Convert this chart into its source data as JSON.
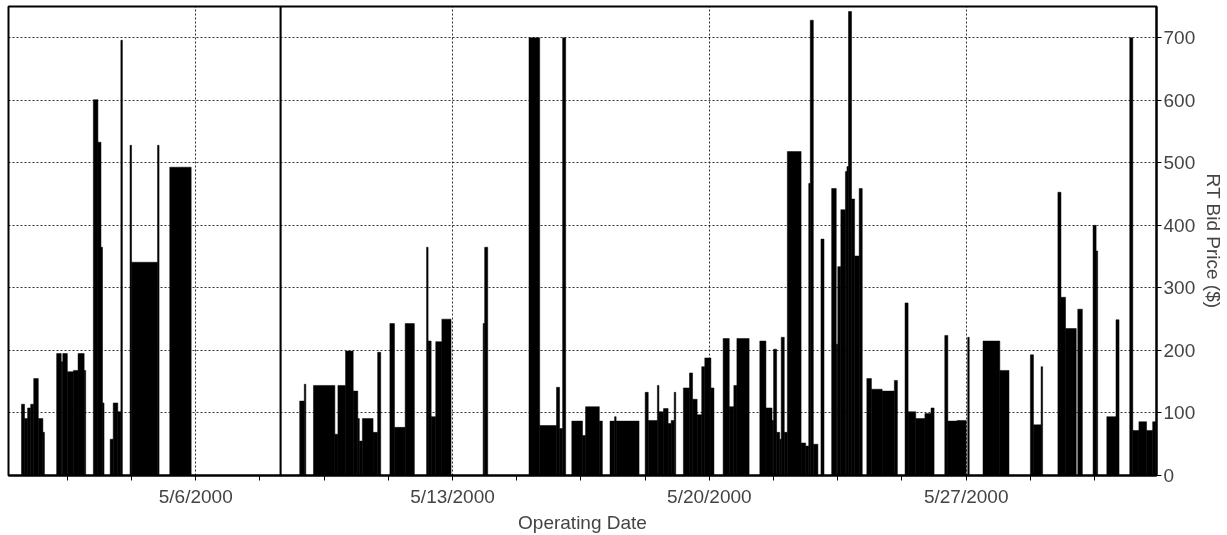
{
  "chart_data": {
    "type": "histogram",
    "xlabel": "Operating Date",
    "ylabel": "RT Bid Price ($)",
    "color": "#000000",
    "grid": true,
    "xlim": [
      "2000-04-30T21:30",
      "2000-06-01T04:30"
    ],
    "ylim": [
      0,
      750
    ],
    "xticks": [
      {
        "value": "2000-05-02T12:00",
        "label": null
      },
      {
        "value": "2000-05-04T06:00",
        "label": null
      },
      {
        "value": "2000-05-06T00:00",
        "label": "5/6/2000"
      },
      {
        "value": "2000-05-07T18:00",
        "label": null
      },
      {
        "value": "2000-05-09T12:00",
        "label": null
      },
      {
        "value": "2000-05-11T06:00",
        "label": null
      },
      {
        "value": "2000-05-13T00:00",
        "label": "5/13/2000"
      },
      {
        "value": "2000-05-14T18:00",
        "label": null
      },
      {
        "value": "2000-05-16T12:00",
        "label": null
      },
      {
        "value": "2000-05-18T06:00",
        "label": null
      },
      {
        "value": "2000-05-20T00:00",
        "label": "5/20/2000"
      },
      {
        "value": "2000-05-21T18:00",
        "label": null
      },
      {
        "value": "2000-05-23T12:00",
        "label": null
      },
      {
        "value": "2000-05-25T06:00",
        "label": null
      },
      {
        "value": "2000-05-27T00:00",
        "label": "5/27/2000"
      },
      {
        "value": "2000-05-28T18:00",
        "label": null
      },
      {
        "value": "2000-05-30T12:00",
        "label": null
      }
    ],
    "yticks": [
      0,
      100,
      200,
      300,
      400,
      500,
      600,
      700
    ],
    "bins": [
      "2000-05-01T06:00",
      "2000-05-01T08:00",
      "2000-05-01T10:00",
      "2000-05-01T12:00",
      "2000-05-01T14:00",
      "2000-05-01T17:00",
      "2000-05-01T20:00",
      "2000-05-01T21:00",
      "2000-05-02T05:00",
      "2000-05-02T08:00",
      "2000-05-02T09:00",
      "2000-05-02T12:00",
      "2000-05-02T16:00",
      "2000-05-02T19:00",
      "2000-05-02T23:00",
      "2000-05-03T00:00",
      "2000-05-03T05:00",
      "2000-05-03T08:00",
      "2000-05-03T10:00",
      "2000-05-03T11:00",
      "2000-05-03T12:00",
      "2000-05-03T16:00",
      "2000-05-03T18:00",
      "2000-05-03T21:00",
      "2000-05-03T23:00",
      "2000-05-04T00:00",
      "2000-05-04T05:00",
      "2000-05-04T06:00",
      "2000-05-04T23:00",
      "2000-05-05T00:00",
      "2000-05-05T07:00",
      "2000-05-05T21:00",
      "2000-05-08T07:00",
      "2000-05-08T08:00",
      "2000-05-08T20:00",
      "2000-05-08T23:00",
      "2000-05-09T00:00",
      "2000-05-09T05:00",
      "2000-05-09T19:00",
      "2000-05-09T21:00",
      "2000-05-10T02:00",
      "2000-05-10T07:00",
      "2000-05-10T10:00",
      "2000-05-10T11:00",
      "2000-05-10T13:00",
      "2000-05-10T20:00",
      "2000-05-10T23:00",
      "2000-05-11T01:00",
      "2000-05-11T07:00",
      "2000-05-11T10:00",
      "2000-05-11T17:00",
      "2000-05-11T23:00",
      "2000-05-12T07:00",
      "2000-05-12T08:00",
      "2000-05-12T10:00",
      "2000-05-12T13:00",
      "2000-05-12T17:00",
      "2000-05-12T23:00",
      "2000-05-13T20:00",
      "2000-05-13T21:00",
      "2000-05-13T23:00",
      "2000-05-15T02:00",
      "2000-05-15T09:00",
      "2000-05-15T20:00",
      "2000-05-15T22:00",
      "2000-05-16T00:00",
      "2000-05-16T02:00",
      "2000-05-16T06:00",
      "2000-05-16T13:00",
      "2000-05-16T15:00",
      "2000-05-17T00:00",
      "2000-05-17T02:00",
      "2000-05-17T07:00",
      "2000-05-17T10:00",
      "2000-05-17T11:00",
      "2000-05-18T02:00",
      "2000-05-18T06:00",
      "2000-05-18T08:00",
      "2000-05-18T14:00",
      "2000-05-18T15:00",
      "2000-05-18T18:00",
      "2000-05-18T21:00",
      "2000-05-18T23:00",
      "2000-05-19T01:00",
      "2000-05-19T02:00",
      "2000-05-19T07:00",
      "2000-05-19T11:00",
      "2000-05-19T13:00",
      "2000-05-19T16:00",
      "2000-05-19T19:00",
      "2000-05-19T21:00",
      "2000-05-20T01:00",
      "2000-05-20T03:00",
      "2000-05-20T09:00",
      "2000-05-20T13:00",
      "2000-05-20T16:00",
      "2000-05-20T18:00",
      "2000-05-21T02:00",
      "2000-05-21T09:00",
      "2000-05-21T13:00",
      "2000-05-21T17:00",
      "2000-05-21T18:00",
      "2000-05-21T20:00",
      "2000-05-21T22:00",
      "2000-05-21T23:00",
      "2000-05-22T01:00",
      "2000-05-22T03:00",
      "2000-05-22T12:00",
      "2000-05-22T15:00",
      "2000-05-22T17:00",
      "2000-05-22T18:00",
      "2000-05-22T20:00",
      "2000-05-22T23:00",
      "2000-05-23T01:00",
      "2000-05-23T03:00",
      "2000-05-23T08:00",
      "2000-05-23T11:00",
      "2000-05-23T12:00",
      "2000-05-23T14:00",
      "2000-05-23T17:00",
      "2000-05-23T18:00",
      "2000-05-23T19:00",
      "2000-05-23T21:00",
      "2000-05-23T23:00",
      "2000-05-24T02:00",
      "2000-05-24T04:00",
      "2000-05-24T07:00",
      "2000-05-24T10:00",
      "2000-05-24T17:00",
      "2000-05-25T01:00",
      "2000-05-25T03:00",
      "2000-05-25T08:00",
      "2000-05-25T10:00",
      "2000-05-25T15:00",
      "2000-05-25T21:00",
      "2000-05-26T01:00",
      "2000-05-26T03:00",
      "2000-05-26T10:00",
      "2000-05-26T12:00",
      "2000-05-26T18:00",
      "2000-05-27T00:00",
      "2000-05-27T01:00",
      "2000-05-27T02:00",
      "2000-05-27T11:00",
      "2000-05-27T22:00",
      "2000-05-28T04:00",
      "2000-05-28T18:00",
      "2000-05-28T20:00",
      "2000-05-29T01:00",
      "2000-05-29T02:00",
      "2000-05-29T12:00",
      "2000-05-29T14:00",
      "2000-05-29T17:00",
      "2000-05-30T00:00",
      "2000-05-30T01:00",
      "2000-05-30T04:00",
      "2000-05-30T11:00",
      "2000-05-30T13:00",
      "2000-05-30T14:00",
      "2000-05-30T20:00",
      "2000-05-31T02:00",
      "2000-05-31T04:00",
      "2000-05-31T11:00",
      "2000-05-31T13:00",
      "2000-05-31T17:00",
      "2000-05-31T22:00",
      "2000-06-01T02:00",
      "2000-06-01T04:00"
    ],
    "values": [
      114,
      91,
      108,
      114,
      155,
      91,
      69,
      null,
      195,
      182,
      195,
      166,
      168,
      195,
      168,
      null,
      601,
      533,
      365,
      116,
      null,
      58,
      116,
      102,
      696,
      null,
      528,
      341,
      528,
      null,
      493,
      null,
      750,
      null,
      119,
      146,
      null,
      144,
      66,
      144,
      199,
      135,
      91,
      55,
      91,
      69,
      197,
      null,
      243,
      77,
      243,
      null,
      365,
      215,
      94,
      214,
      250,
      null,
      243,
      365,
      null,
      700,
      80,
      141,
      75,
      700,
      null,
      87,
      64,
      110,
      87,
      null,
      87,
      94,
      87,
      null,
      133,
      88,
      144,
      102,
      107,
      83,
      88,
      133,
      null,
      140,
      164,
      122,
      97,
      174,
      188,
      140,
      null,
      219,
      110,
      144,
      219,
      null,
      215,
      108,
      88,
      202,
      69,
      58,
      221,
      69,
      518,
      52,
      47,
      467,
      728,
      50,
      null,
      378,
      null,
      459,
      210,
      334,
      425,
      486,
      494,
      742,
      442,
      351,
      459,
      null,
      155,
      138,
      135,
      152,
      null,
      276,
      102,
      91,
      99,
      108,
      null,
      224,
      87,
      88,
      null,
      221,
      null,
      215,
      168,
      null,
      193,
      81,
      174,
      null,
      453,
      285,
      235,
      null,
      266,
      null,
      400,
      359,
      null,
      94,
      249,
      null,
      700,
      72,
      86,
      72,
      86
    ]
  }
}
